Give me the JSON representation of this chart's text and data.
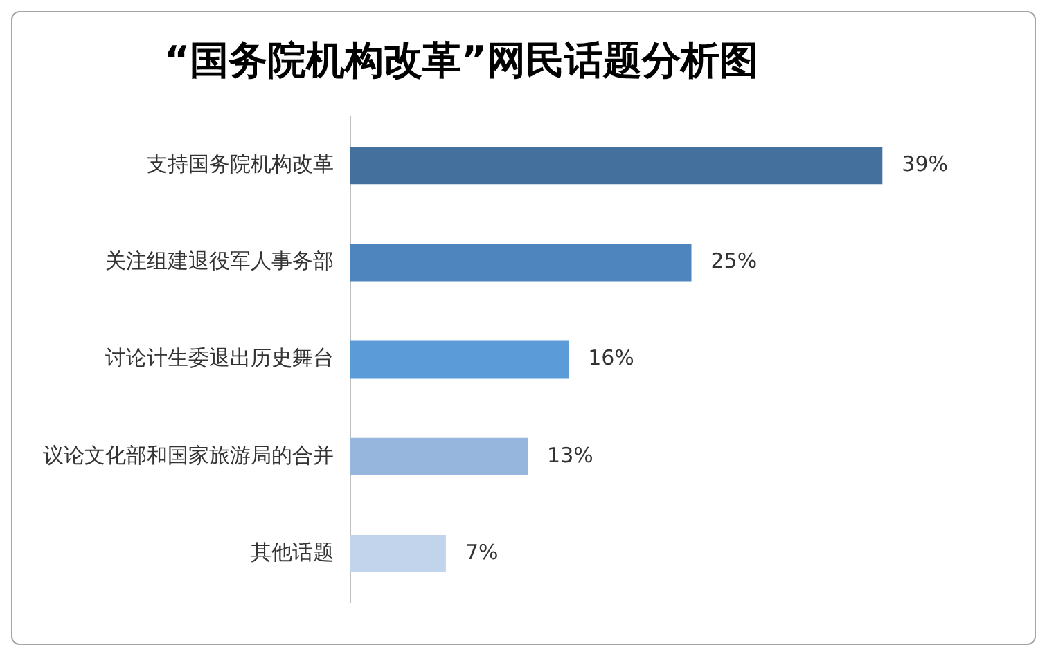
{
  "chart_data": {
    "type": "bar",
    "orientation": "horizontal",
    "title": "“国务院机构改革”网民话题分析图",
    "categories": [
      "支持国务院机构改革",
      "关注组建退役军人事务部",
      "讨论计生委退出历史舞台",
      "议论文化部和国家旅游局的合并",
      "其他话题"
    ],
    "values": [
      39,
      25,
      16,
      13,
      7
    ],
    "colors": [
      "#44709e",
      "#4e85bf",
      "#5b9bd8",
      "#97b6de",
      "#c2d4ec"
    ],
    "value_labels": [
      "39%",
      "25%",
      "16%",
      "13%",
      "7%"
    ],
    "grid": false,
    "legend": false
  }
}
